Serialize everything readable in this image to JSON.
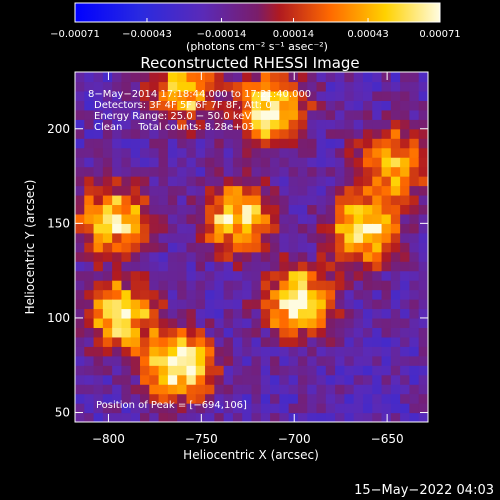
{
  "chart_data": {
    "type": "heatmap",
    "title": "Reconstructed RHESSI Image",
    "xlabel": "Heliocentric X (arcsec)",
    "ylabel": "Heliocentric Y (arcsec)",
    "xlim": [
      -818,
      -628
    ],
    "ylim": [
      45,
      230
    ],
    "x_ticks": [
      -800,
      -750,
      -700,
      -650
    ],
    "x_tick_labels": [
      "−800",
      "−750",
      "−700",
      "−650"
    ],
    "y_ticks": [
      50,
      100,
      150,
      200
    ],
    "y_tick_labels": [
      "50",
      "100",
      "150",
      "200"
    ],
    "colorbar": {
      "min": -0.00071,
      "max": 0.00071,
      "ticks": [
        -0.00071,
        -0.00043,
        -0.00014,
        0.00014,
        0.00043,
        0.00071
      ],
      "tick_labels": [
        "−0.00071",
        "−0.00043",
        "−0.00014",
        "0.00014",
        "0.00043",
        "0.00071"
      ],
      "unit": "(photons cm⁻² s⁻¹ asec⁻²)",
      "colors": [
        "#0000ff",
        "#3b2bd6",
        "#5a2ab8",
        "#b01a20",
        "#ff6a00",
        "#ffd100",
        "#fffce0"
      ]
    },
    "annotations": [
      "8−May−2014 17:18:44.000 to 17:21:40.000",
      "Detectors: 3F 4F 5F 6F 7F 8F, Att: 0",
      "Energy Range: 25.0 − 50.0 keV",
      "Clean     Total counts: 8.28e+03"
    ],
    "peak_label": "Position of Peak = [−694,106]",
    "peak_position": [
      -694,
      106
    ],
    "bright_regions": [
      {
        "x": -765,
        "y": 72,
        "intensity": 0.00071
      },
      {
        "x": -700,
        "y": 106,
        "intensity": 0.0007
      },
      {
        "x": -733,
        "y": 150,
        "intensity": 0.0006
      },
      {
        "x": -715,
        "y": 208,
        "intensity": 0.0007
      },
      {
        "x": -665,
        "y": 145,
        "intensity": 0.00062
      },
      {
        "x": -800,
        "y": 150,
        "intensity": 0.00058
      },
      {
        "x": -795,
        "y": 100,
        "intensity": 0.00055
      },
      {
        "x": -762,
        "y": 218,
        "intensity": 0.0005
      },
      {
        "x": -650,
        "y": 180,
        "intensity": 0.00048
      }
    ]
  },
  "footer_date": "15−May−2022 04:03"
}
